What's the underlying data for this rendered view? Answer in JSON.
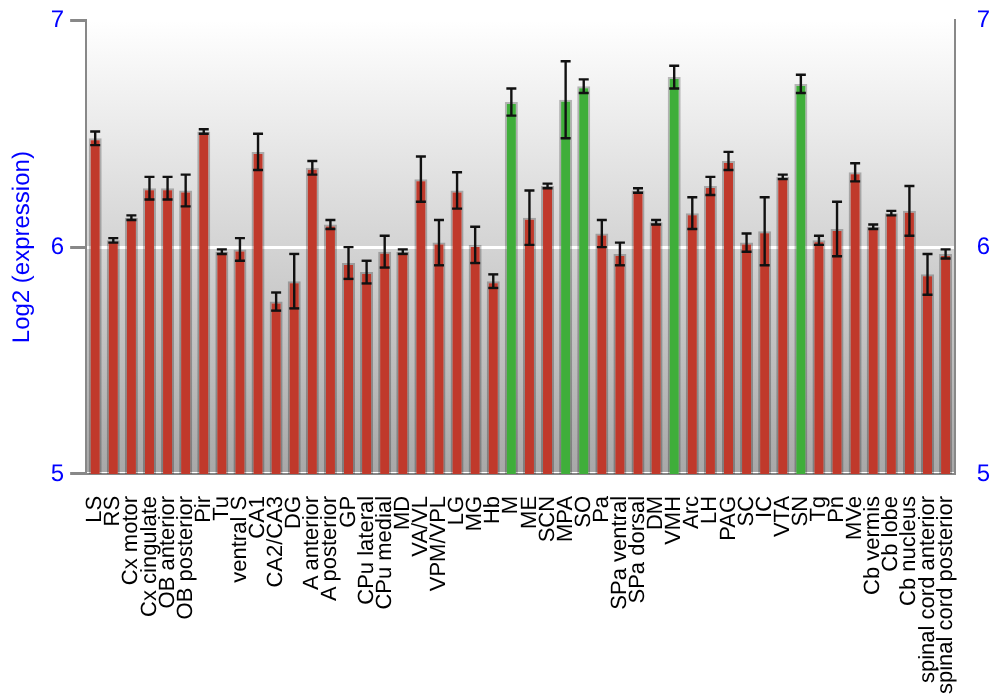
{
  "chart_data": {
    "type": "bar",
    "ylabel": "Log2 (expression)",
    "categories": [
      "LS",
      "RS",
      "Cx motor",
      "Cx cingulate",
      "OB anterior",
      "OB posterior",
      "Pir",
      "Tu",
      "ventral S",
      "CA1",
      "CA2/CA3",
      "DG",
      "A anterior",
      "A posterior",
      "GP",
      "CPu lateral",
      "CPu medial",
      "MD",
      "VA/VL",
      "VPM/VPL",
      "LG",
      "MG",
      "Hb",
      "M",
      "ME",
      "SCN",
      "MPA",
      "SO",
      "Pa",
      "SPa ventral",
      "SPa dorsal",
      "DM",
      "VMH",
      "Arc",
      "LH",
      "PAG",
      "SC",
      "IC",
      "VTA",
      "SN",
      "Tg",
      "Pn",
      "MVe",
      "Cb vermis",
      "Cb lobe",
      "Cb nucleus",
      "spinal cord anterior",
      "spinal cord posterior"
    ],
    "values": [
      6.48,
      6.03,
      6.13,
      6.26,
      6.26,
      6.25,
      6.51,
      5.98,
      5.99,
      6.42,
      5.76,
      5.85,
      6.35,
      6.1,
      5.93,
      5.89,
      5.98,
      5.98,
      6.3,
      6.02,
      6.25,
      6.01,
      5.85,
      6.64,
      6.13,
      6.27,
      6.65,
      6.71,
      6.06,
      5.97,
      6.25,
      6.11,
      6.75,
      6.15,
      6.27,
      6.38,
      6.02,
      6.07,
      6.31,
      6.72,
      6.03,
      6.08,
      6.33,
      6.09,
      6.15,
      6.16,
      5.88,
      5.97
    ],
    "errors": [
      0.03,
      0.01,
      0.01,
      0.05,
      0.05,
      0.07,
      0.01,
      0.01,
      0.05,
      0.08,
      0.04,
      0.12,
      0.03,
      0.02,
      0.07,
      0.05,
      0.07,
      0.01,
      0.1,
      0.1,
      0.08,
      0.08,
      0.03,
      0.06,
      0.12,
      0.01,
      0.17,
      0.03,
      0.06,
      0.05,
      0.01,
      0.01,
      0.05,
      0.07,
      0.04,
      0.04,
      0.04,
      0.15,
      0.01,
      0.04,
      0.02,
      0.12,
      0.04,
      0.01,
      0.01,
      0.11,
      0.09,
      0.02
    ],
    "colors": [
      "#c0392b",
      "#c0392b",
      "#c0392b",
      "#c0392b",
      "#c0392b",
      "#c0392b",
      "#c0392b",
      "#c0392b",
      "#c0392b",
      "#c0392b",
      "#c0392b",
      "#c0392b",
      "#c0392b",
      "#c0392b",
      "#c0392b",
      "#c0392b",
      "#c0392b",
      "#c0392b",
      "#c0392b",
      "#c0392b",
      "#c0392b",
      "#c0392b",
      "#c0392b",
      "#3fae3a",
      "#c0392b",
      "#c0392b",
      "#3fae3a",
      "#3fae3a",
      "#c0392b",
      "#c0392b",
      "#c0392b",
      "#c0392b",
      "#3fae3a",
      "#c0392b",
      "#c0392b",
      "#c0392b",
      "#c0392b",
      "#c0392b",
      "#c0392b",
      "#3fae3a",
      "#c0392b",
      "#c0392b",
      "#c0392b",
      "#c0392b",
      "#c0392b",
      "#c0392b",
      "#c0392b",
      "#c0392b"
    ],
    "ylim": [
      5,
      7
    ],
    "yticks": [
      5,
      6,
      7
    ],
    "y2lim": [
      5,
      7
    ],
    "y2ticks": [
      5,
      6,
      7
    ],
    "grid": "y"
  }
}
